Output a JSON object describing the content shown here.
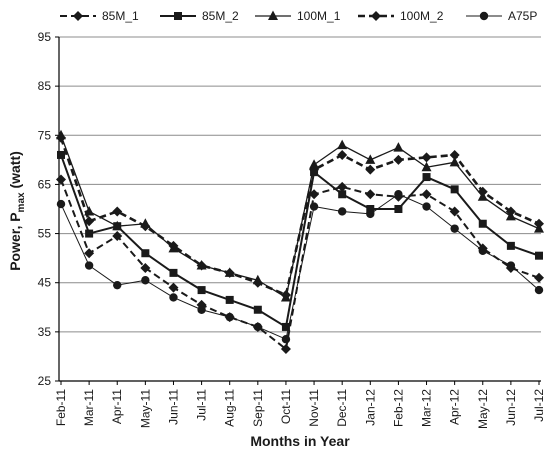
{
  "chart_data": {
    "type": "line",
    "xlabel": "Months in Year",
    "ylabel": "Power, P",
    "ylabel_sub": "max",
    "ylabel_suffix": " (watt)",
    "ylim": [
      25,
      95
    ],
    "yticks": [
      25,
      35,
      45,
      55,
      65,
      75,
      85,
      95
    ],
    "grid": "horizontal",
    "legend_position": "top",
    "categories": [
      "Feb-11",
      "Mar-11",
      "Apr-11",
      "May-11",
      "Jun-11",
      "Jul-11",
      "Aug-11",
      "Sep-11",
      "Oct-11",
      "Nov-11",
      "Dec-11",
      "Jan-12",
      "Feb-12",
      "Mar-12",
      "Apr-12",
      "May-12",
      "Jun-12",
      "Jul-12"
    ],
    "series": [
      {
        "name": "85M_1",
        "marker": "diamond",
        "dash": true,
        "width": 2,
        "values": [
          66,
          51,
          54.5,
          48,
          44,
          40.5,
          38,
          36,
          31.5,
          63,
          64.5,
          63,
          62.5,
          63,
          59.5,
          52,
          48,
          46
        ]
      },
      {
        "name": "85M_2",
        "marker": "square",
        "dash": false,
        "width": 2,
        "values": [
          71,
          55,
          56.5,
          51,
          47,
          43.5,
          41.5,
          39.5,
          36,
          67.5,
          63,
          60,
          60,
          66.5,
          64,
          57,
          52.5,
          50.5
        ]
      },
      {
        "name": "100M_1",
        "marker": "triangle",
        "dash": false,
        "width": 1.3,
        "values": [
          75,
          59.5,
          56.5,
          57,
          52,
          48.5,
          47,
          45.5,
          42,
          69,
          73,
          70,
          72.5,
          68.5,
          69.5,
          62.5,
          58.5,
          56
        ]
      },
      {
        "name": "100M_2",
        "marker": "diamond",
        "dash": true,
        "width": 2.6,
        "values": [
          74.5,
          57.5,
          59.5,
          56.5,
          52.5,
          48.5,
          47,
          45,
          42.5,
          68,
          71,
          68,
          70,
          70.5,
          71,
          63.5,
          59.5,
          57
        ]
      },
      {
        "name": "A75P",
        "marker": "circle",
        "dash": false,
        "width": 1,
        "values": [
          61,
          48.5,
          44.5,
          45.5,
          42,
          39.5,
          38,
          36,
          33.5,
          60.5,
          59.5,
          59,
          63,
          60.5,
          56,
          51.5,
          48.5,
          43.5
        ]
      }
    ]
  }
}
